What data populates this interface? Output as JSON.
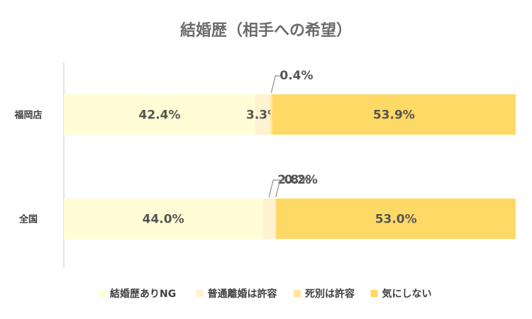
{
  "chart_data": {
    "type": "bar",
    "orientation": "horizontal",
    "stacked": true,
    "percent": true,
    "title": "結婚歴（相手への希望）",
    "categories": [
      "福岡店",
      "全国"
    ],
    "series": [
      {
        "name": "結婚歴ありNG",
        "values": [
          42.4,
          44.0
        ],
        "labels": [
          "42.4%",
          "44.0%"
        ],
        "color": "#FFFDD5"
      },
      {
        "name": "普通離婚は許容",
        "values": [
          3.3,
          2.8
        ],
        "labels": [
          "3.3%",
          "2.8%"
        ],
        "color": "#FFF2D0"
      },
      {
        "name": "死別は許容",
        "values": [
          0.4,
          0.2
        ],
        "labels": [
          "0.4%",
          "0.2%"
        ],
        "color": "#FFE79A"
      },
      {
        "name": "気にしない",
        "values": [
          53.9,
          53.0
        ],
        "labels": [
          "53.9%",
          "53.0%"
        ],
        "color": "#FFD966"
      }
    ],
    "xlim": [
      0,
      100
    ],
    "grid": false,
    "legend_position": "bottom"
  }
}
